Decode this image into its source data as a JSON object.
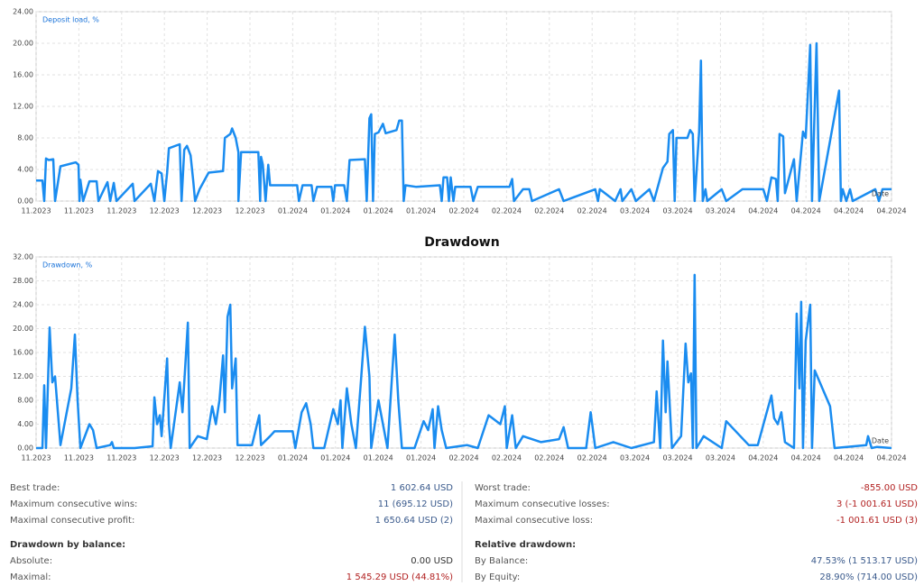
{
  "chart_data": [
    {
      "type": "line",
      "y_label": "Deposit load, %",
      "x_label": "Date",
      "color": "#1a8cf0",
      "grid": true,
      "xlim": [
        0,
        947
      ],
      "ylim": [
        0,
        24
      ],
      "yticks": [
        {
          "value": 0,
          "label": "0.00"
        },
        {
          "value": 4,
          "label": "4.00"
        },
        {
          "value": 8,
          "label": "8.00"
        },
        {
          "value": 12,
          "label": "12.00"
        },
        {
          "value": 16,
          "label": "16.00"
        },
        {
          "value": 20,
          "label": "20.00"
        },
        {
          "value": 24,
          "label": "24.00"
        }
      ],
      "xticks": [
        {
          "value": 0,
          "label": "11.2023"
        },
        {
          "value": 47.35,
          "label": "11.2023"
        },
        {
          "value": 94.7,
          "label": "11.2023"
        },
        {
          "value": 142.05,
          "label": "12.2023"
        },
        {
          "value": 189.4,
          "label": "12.2023"
        },
        {
          "value": 236.75,
          "label": "12.2023"
        },
        {
          "value": 284.1,
          "label": "01.2024"
        },
        {
          "value": 331.45,
          "label": "01.2024"
        },
        {
          "value": 378.8,
          "label": "01.2024"
        },
        {
          "value": 426.15,
          "label": "01.2024"
        },
        {
          "value": 473.5,
          "label": "02.2024"
        },
        {
          "value": 520.85,
          "label": "02.2024"
        },
        {
          "value": 568.2,
          "label": "02.2024"
        },
        {
          "value": 615.55,
          "label": "02.2024"
        },
        {
          "value": 662.9,
          "label": "03.2024"
        },
        {
          "value": 710.25,
          "label": "03.2024"
        },
        {
          "value": 757.6,
          "label": "03.2024"
        },
        {
          "value": 804.95,
          "label": "04.2024"
        },
        {
          "value": 852.3,
          "label": "04.2024"
        },
        {
          "value": 899.65,
          "label": "04.2024"
        },
        {
          "value": 947,
          "label": "04.2024"
        }
      ],
      "x": [
        0,
        7,
        9,
        11,
        14,
        19,
        21,
        27,
        44,
        47,
        48,
        49,
        52,
        59,
        67,
        69,
        79,
        82,
        86,
        89,
        107,
        109,
        127,
        131,
        135,
        139,
        142,
        145,
        147,
        159,
        161,
        164,
        167,
        171,
        174,
        176,
        181,
        191,
        207,
        209,
        215,
        217,
        221,
        224,
        224,
        227,
        246,
        248,
        249,
        251,
        254,
        257,
        259,
        289,
        291,
        295,
        305,
        307,
        311,
        327,
        329,
        331,
        341,
        344,
        347,
        364,
        366,
        369,
        371,
        373,
        375,
        379,
        384,
        387,
        399,
        402,
        405,
        407,
        409,
        421,
        447,
        449,
        451,
        455,
        457,
        459,
        462,
        464,
        481,
        484,
        489,
        524,
        527,
        529,
        539,
        546,
        549,
        579,
        584,
        619,
        622,
        624,
        641,
        647,
        649,
        659,
        664,
        679,
        684,
        694,
        699,
        701,
        705,
        707,
        709,
        721,
        724,
        727,
        729,
        734,
        736,
        738,
        741,
        743,
        759,
        764,
        782,
        805,
        809,
        814,
        819,
        821,
        823,
        827,
        829,
        839,
        842,
        849,
        852,
        857,
        859,
        864,
        867,
        889,
        891,
        893,
        897,
        901,
        904,
        929,
        933,
        937,
        947
      ],
      "values": [
        2.6,
        2.6,
        0,
        5.4,
        5.2,
        5.3,
        0,
        4.4,
        4.9,
        4.6,
        0,
        2.7,
        0,
        2.5,
        2.5,
        0,
        2.4,
        0,
        2.3,
        0,
        2.2,
        0,
        2.2,
        0,
        3.8,
        3.5,
        0,
        3.6,
        6.7,
        7.2,
        0,
        6.5,
        7,
        5.8,
        2.5,
        0,
        1.5,
        3.6,
        3.8,
        8,
        8.5,
        9.2,
        8,
        6.2,
        0,
        6.2,
        6.2,
        0,
        5.6,
        4.6,
        0,
        4.6,
        2,
        2,
        0,
        2,
        2,
        0,
        1.8,
        1.8,
        0,
        2,
        2,
        0,
        5.2,
        5.3,
        0,
        10.5,
        11,
        0,
        8.5,
        8.7,
        9.8,
        8.6,
        9,
        10.2,
        10.2,
        0,
        2,
        1.8,
        2,
        0,
        3,
        3,
        0,
        3,
        0,
        1.8,
        1.8,
        0,
        1.8,
        1.8,
        2.8,
        0,
        1.5,
        1.5,
        0,
        1.5,
        0,
        1.5,
        0,
        1.5,
        0,
        1.5,
        0,
        1.5,
        0,
        1.5,
        0,
        4.2,
        5,
        8.5,
        9,
        0,
        8,
        8,
        9,
        8.5,
        0,
        8.8,
        17.8,
        0,
        1.5,
        0,
        1.5,
        0,
        1.5,
        1.5,
        0,
        3,
        2.8,
        0,
        8.5,
        8.2,
        1,
        5.3,
        0,
        8.8,
        8,
        19.8,
        0,
        20,
        0,
        14,
        0,
        1.5,
        0,
        1.5,
        0,
        1.5,
        0,
        1.5,
        1.5
      ]
    },
    {
      "type": "line",
      "title": "Drawdown",
      "y_label": "Drawdown, %",
      "x_label": "Date",
      "color": "#1a8cf0",
      "grid": true,
      "xlim": [
        0,
        947
      ],
      "ylim": [
        0,
        32
      ],
      "yticks": [
        {
          "value": 0,
          "label": "0.00"
        },
        {
          "value": 4,
          "label": "4.00"
        },
        {
          "value": 8,
          "label": "8.00"
        },
        {
          "value": 12,
          "label": "12.00"
        },
        {
          "value": 16,
          "label": "16.00"
        },
        {
          "value": 20,
          "label": "20.00"
        },
        {
          "value": 24,
          "label": "24.00"
        },
        {
          "value": 28,
          "label": "28.00"
        },
        {
          "value": 32,
          "label": "32.00"
        }
      ],
      "xticks": [
        {
          "value": 0,
          "label": "11.2023"
        },
        {
          "value": 47.35,
          "label": "11.2023"
        },
        {
          "value": 94.7,
          "label": "11.2023"
        },
        {
          "value": 142.05,
          "label": "12.2023"
        },
        {
          "value": 189.4,
          "label": "12.2023"
        },
        {
          "value": 236.75,
          "label": "12.2023"
        },
        {
          "value": 284.1,
          "label": "01.2024"
        },
        {
          "value": 331.45,
          "label": "01.2024"
        },
        {
          "value": 378.8,
          "label": "01.2024"
        },
        {
          "value": 426.15,
          "label": "01.2024"
        },
        {
          "value": 473.5,
          "label": "02.2024"
        },
        {
          "value": 520.85,
          "label": "02.2024"
        },
        {
          "value": 568.2,
          "label": "02.2024"
        },
        {
          "value": 615.55,
          "label": "02.2024"
        },
        {
          "value": 662.9,
          "label": "03.2024"
        },
        {
          "value": 710.25,
          "label": "03.2024"
        },
        {
          "value": 757.6,
          "label": "03.2024"
        },
        {
          "value": 804.95,
          "label": "04.2024"
        },
        {
          "value": 852.3,
          "label": "04.2024"
        },
        {
          "value": 899.65,
          "label": "04.2024"
        },
        {
          "value": 947,
          "label": "04.2024"
        }
      ],
      "x": [
        0,
        7,
        9,
        11,
        15,
        18,
        21,
        27,
        39,
        43,
        46,
        49,
        59,
        63,
        67,
        82,
        84,
        86,
        109,
        129,
        131,
        134,
        137,
        139,
        145,
        147,
        149,
        159,
        162,
        168,
        170,
        179,
        189,
        195,
        199,
        203,
        207,
        209,
        212,
        215,
        217,
        221,
        223,
        239,
        247,
        249,
        259,
        264,
        284,
        287,
        294,
        299,
        304,
        307,
        319,
        329,
        334,
        337,
        339,
        344,
        349,
        354,
        359,
        364,
        369,
        371,
        379,
        384,
        389,
        397,
        401,
        405,
        419,
        429,
        434,
        439,
        441,
        445,
        449,
        454,
        477,
        489,
        501,
        514,
        519,
        521,
        527,
        531,
        539,
        559,
        579,
        584,
        589,
        609,
        614,
        619,
        639,
        659,
        684,
        687,
        691,
        694,
        697,
        699,
        704,
        714,
        719,
        722,
        725,
        727,
        729,
        731,
        739,
        759,
        764,
        789,
        799,
        807,
        814,
        817,
        821,
        825,
        829,
        839,
        842,
        845,
        847,
        849,
        852,
        857,
        859,
        862,
        879,
        884,
        919,
        921,
        925,
        931,
        947
      ],
      "values": [
        0,
        0,
        10.5,
        0,
        20.2,
        11,
        12,
        0.5,
        10,
        19,
        8,
        0,
        4,
        3,
        0,
        0.5,
        1,
        0,
        0,
        0.3,
        8.5,
        4,
        5.5,
        2,
        15,
        4,
        0,
        11,
        6,
        21,
        0,
        2,
        1.5,
        7,
        4,
        8,
        15.5,
        6,
        22,
        24,
        10,
        15,
        0.5,
        0.5,
        5.5,
        0.5,
        2,
        2.8,
        2.8,
        0,
        6,
        7.5,
        4,
        0,
        0,
        6.5,
        4,
        8,
        0,
        10,
        4,
        0,
        10,
        20.3,
        12,
        0,
        8,
        4,
        0,
        19,
        8,
        0,
        0,
        4.5,
        3,
        6.5,
        0,
        7,
        3,
        0,
        0.5,
        0,
        5.5,
        4,
        7,
        0,
        5.5,
        0,
        2,
        1,
        1.5,
        3.5,
        0,
        0,
        6,
        0,
        1,
        0,
        1,
        9.5,
        0,
        18,
        6,
        14.5,
        0,
        2,
        17.5,
        11,
        12.5,
        0,
        29,
        0,
        2,
        0,
        4.5,
        0.5,
        0.5,
        5,
        8.8,
        5,
        4,
        6,
        1,
        0,
        22.5,
        10,
        24.5,
        0,
        18,
        24,
        0,
        13,
        7,
        0,
        0.5,
        2,
        0,
        0.2,
        0
      ]
    }
  ],
  "stats": {
    "left": [
      {
        "label": "Best trade:",
        "value": "1 602.64 USD"
      },
      {
        "label": "Maximum consecutive wins:",
        "value": "11 (695.12 USD)"
      },
      {
        "label": "Maximal consecutive profit:",
        "value": "1 650.64 USD (2)"
      }
    ],
    "left_heading": "Drawdown by balance:",
    "left_dd": [
      {
        "label": "Absolute:",
        "value": "0.00 USD"
      },
      {
        "label": "Maximal:",
        "value": "1 545.29 USD (44.81%)"
      }
    ],
    "right": [
      {
        "label": "Worst trade:",
        "value": "-855.00 USD"
      },
      {
        "label": "Maximum consecutive losses:",
        "value": "3 (-1 001.61 USD)"
      },
      {
        "label": "Maximal consecutive loss:",
        "value": "-1 001.61 USD (3)"
      }
    ],
    "right_heading": "Relative drawdown:",
    "right_dd": [
      {
        "label": "By Balance:",
        "value": "47.53% (1 513.17 USD)"
      },
      {
        "label": "By Equity:",
        "value": "28.90% (714.00 USD)"
      }
    ]
  }
}
